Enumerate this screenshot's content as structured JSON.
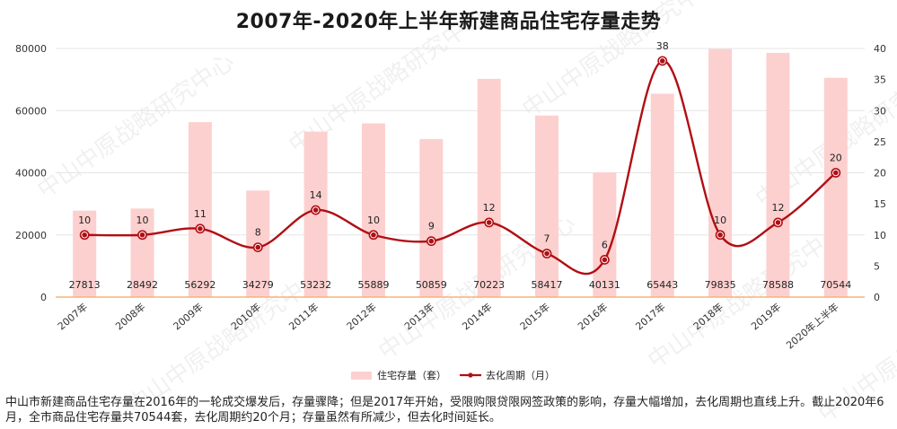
{
  "watermark": "中山中原战略研究中心",
  "footnote": "中山市新建商品住宅存量在2016年的一轮成交爆发后，存量骤降；但是2017年开始，受限购限贷限网签政策的影响，存量大幅增加，去化周期也直线上升。截止2020年6月，全市商品住宅存量共70544套，去化周期约20个月；存量虽然有所减少，但去化时间延长。",
  "colors": {
    "bar": "#fcd0cf",
    "line": "#b00e14",
    "zero_line": "#f5b37a",
    "grid": "#e6e6e6",
    "text": "#333333"
  },
  "chart_data": {
    "type": "bar+line",
    "title": "2007年-2020年上半年新建商品住宅存量走势",
    "categories": [
      "2007年",
      "2008年",
      "2009年",
      "2010年",
      "2011年",
      "2012年",
      "2013年",
      "2014年",
      "2015年",
      "2016年",
      "2017年",
      "2018年",
      "2019年",
      "2020年上半年"
    ],
    "series": [
      {
        "name": "住宅存量（套）",
        "type": "bar",
        "axis": "left",
        "values": [
          27813,
          28492,
          56292,
          34279,
          53232,
          55889,
          50859,
          70223,
          58417,
          40131,
          65443,
          79835,
          78588,
          70544
        ]
      },
      {
        "name": "去化周期（月）",
        "type": "line",
        "axis": "right",
        "values": [
          10,
          10,
          11,
          8,
          14,
          10,
          9,
          12,
          7,
          6,
          38,
          10,
          12,
          20
        ]
      }
    ],
    "y_left": {
      "min": 0,
      "max": 80000,
      "ticks": [
        0,
        20000,
        40000,
        60000,
        80000
      ]
    },
    "y_right": {
      "min": 0,
      "max": 40,
      "ticks": [
        0,
        5,
        10,
        15,
        20,
        25,
        30,
        35,
        40
      ]
    },
    "grid": true,
    "legend_position": "bottom"
  }
}
